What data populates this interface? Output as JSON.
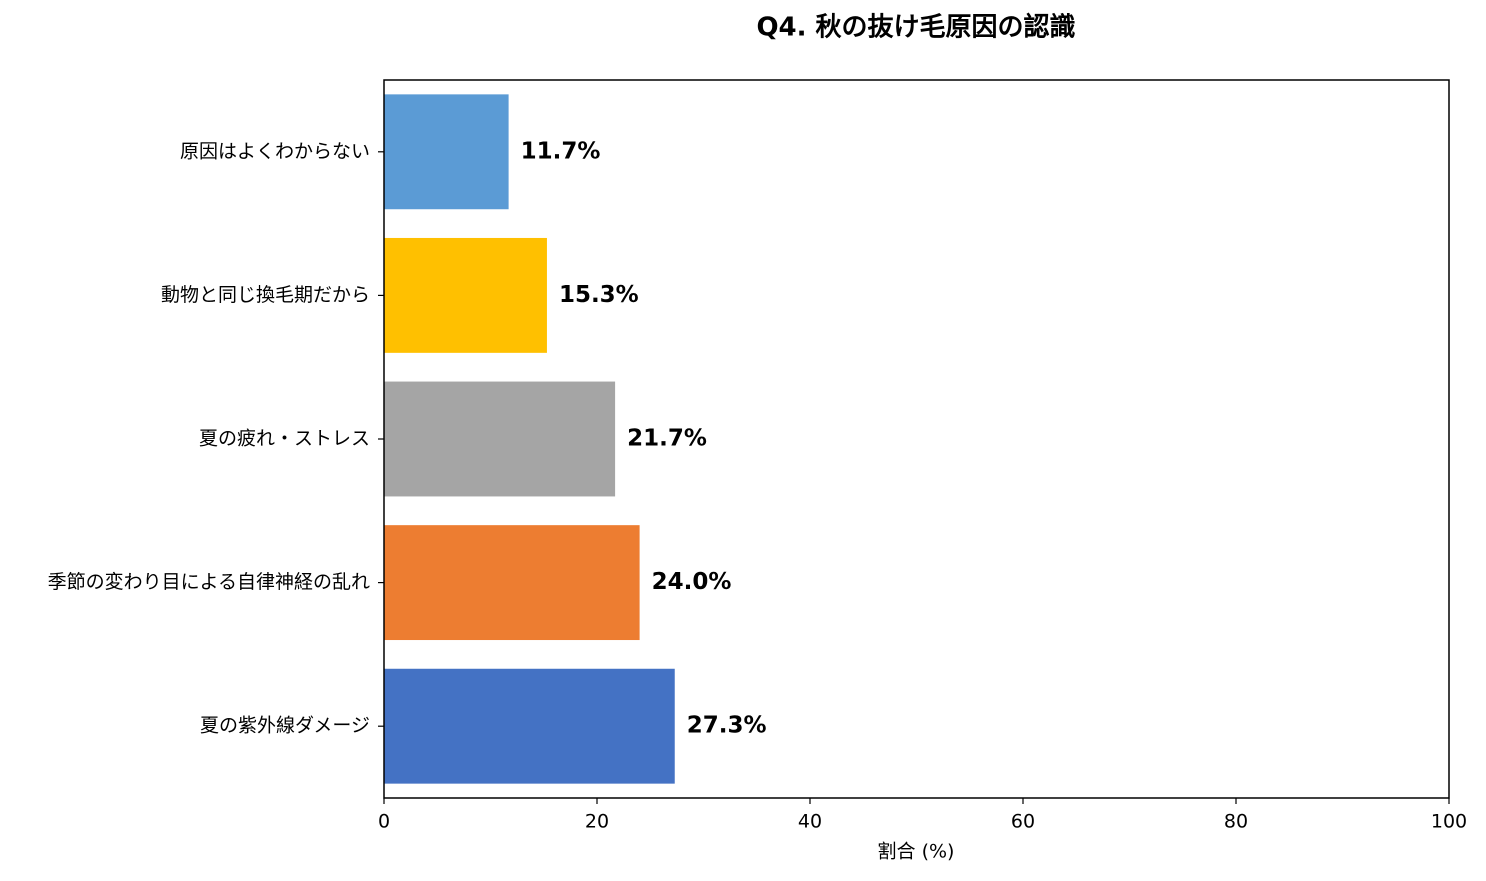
{
  "chart_data": {
    "type": "barh",
    "title": "Q4. 秋の抜け毛原因の認識",
    "categories": [
      "原因はよくわからない",
      "動物と同じ換毛期だから",
      "夏の疲れ・ストレス",
      "季節の変わり目による自律神経の乱れ",
      "夏の紫外線ダメージ"
    ],
    "values": [
      11.7,
      15.3,
      21.7,
      24.0,
      27.3
    ],
    "value_labels": [
      "11.7%",
      "15.3%",
      "21.7%",
      "24.0%",
      "27.3%"
    ],
    "colors": [
      "#5b9bd5",
      "#ffc000",
      "#a5a5a5",
      "#ed7d31",
      "#4472c4"
    ],
    "xlabel": "割合 (%)",
    "xlim": [
      0,
      100
    ],
    "xticks": [
      0,
      20,
      40,
      60,
      80,
      100
    ],
    "grid": false
  }
}
